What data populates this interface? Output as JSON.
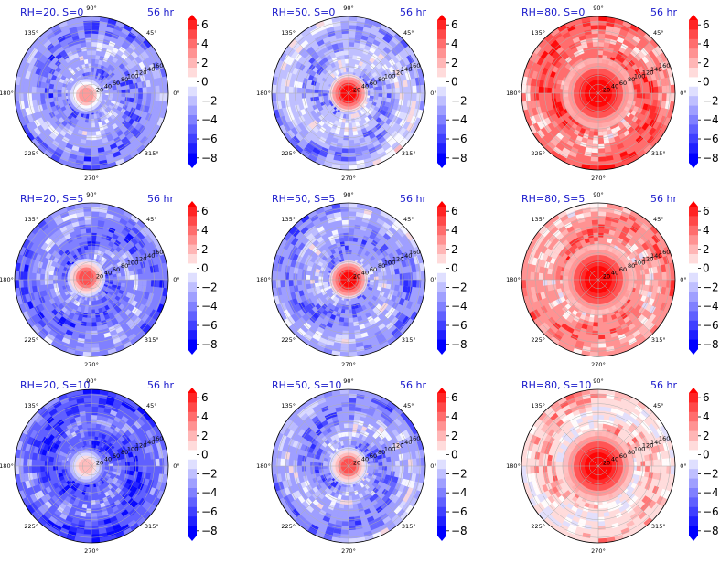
{
  "chart_data": {
    "type": "heatmap",
    "projection": "polar",
    "grid": true,
    "common": {
      "time_label": "56 hr",
      "angle_ticks": [
        "90°",
        "45°",
        "0°",
        "315°",
        "270°",
        "225°",
        "180°",
        "135°"
      ],
      "radial_ticks": [
        "20",
        "40",
        "60",
        "80",
        "100",
        "120",
        "140",
        "160"
      ],
      "colorbar": {
        "ticks": [
          "6",
          "4",
          "2",
          "0",
          "−2",
          "−4",
          "−6",
          "−8"
        ],
        "range": [
          -8,
          7
        ],
        "colors": {
          "negative": "#0000ff",
          "neutral": "#ffffff",
          "positive": "#ff0000"
        }
      }
    },
    "panels": [
      {
        "label": "RH=20, S=0",
        "mean_anomaly": -3.5,
        "core_anomaly": 3,
        "core_offset_deg": 200,
        "style": "neg"
      },
      {
        "label": "RH=50, S=0",
        "mean_anomaly": -2.5,
        "core_anomaly": 7,
        "core_offset_deg": 0,
        "style": "neg"
      },
      {
        "label": "RH=80, S=0",
        "mean_anomaly": 3.5,
        "core_anomaly": 7,
        "core_offset_deg": 0,
        "style": "pos"
      },
      {
        "label": "RH=20, S=5",
        "mean_anomaly": -4,
        "core_anomaly": 5,
        "core_offset_deg": 160,
        "style": "neg"
      },
      {
        "label": "RH=50, S=5",
        "mean_anomaly": -3,
        "core_anomaly": 7,
        "core_offset_deg": 110,
        "style": "neg"
      },
      {
        "label": "RH=80, S=5",
        "mean_anomaly": 2.5,
        "core_anomaly": 7,
        "core_offset_deg": 0,
        "style": "pos"
      },
      {
        "label": "RH=20, S=10",
        "mean_anomaly": -5,
        "core_anomaly": 2,
        "core_offset_deg": 180,
        "style": "neg"
      },
      {
        "label": "RH=50, S=10",
        "mean_anomaly": -3,
        "core_anomaly": 5,
        "core_offset_deg": 250,
        "style": "neg"
      },
      {
        "label": "RH=80, S=10",
        "mean_anomaly": 1,
        "core_anomaly": 7,
        "core_offset_deg": 270,
        "style": "pos"
      }
    ]
  }
}
